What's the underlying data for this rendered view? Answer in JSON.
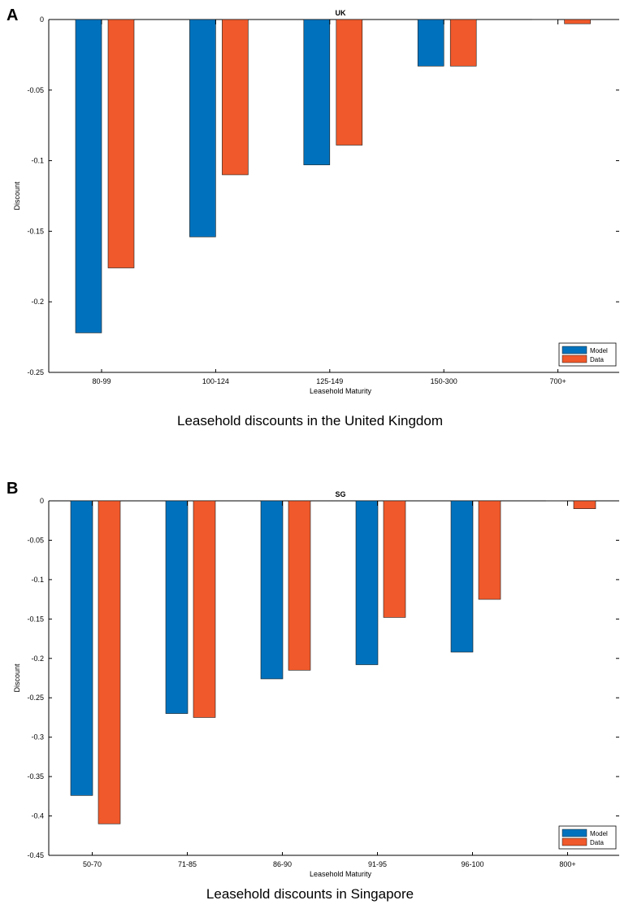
{
  "panels": [
    {
      "letter": "A",
      "caption": "Leasehold discounts in the United Kingdom"
    },
    {
      "letter": "B",
      "caption": "Leasehold discounts in Singapore"
    }
  ],
  "colors": {
    "model": "#0072bd",
    "data": "#f0592b"
  },
  "chart_data": [
    {
      "type": "bar",
      "title": "UK",
      "xlabel": "Leasehold Maturity",
      "ylabel": "Discount",
      "categories": [
        "80-99",
        "100-124",
        "125-149",
        "150-300",
        "700+"
      ],
      "series": [
        {
          "name": "Model",
          "values": [
            -0.222,
            -0.154,
            -0.103,
            -0.033,
            0.0
          ]
        },
        {
          "name": "Data",
          "values": [
            -0.176,
            -0.11,
            -0.089,
            -0.033,
            -0.003
          ]
        }
      ],
      "ylim": [
        -0.25,
        0
      ],
      "yticks": [
        0,
        -0.05,
        -0.1,
        -0.15,
        -0.2,
        -0.25
      ],
      "ytick_labels": [
        "0",
        "-0.05",
        "-0.1",
        "-0.15",
        "-0.2",
        "-0.25"
      ],
      "legend": "bottom-right",
      "grid": false
    },
    {
      "type": "bar",
      "title": "SG",
      "xlabel": "Leasehold Maturity",
      "ylabel": "Discount",
      "categories": [
        "50-70",
        "71-85",
        "86-90",
        "91-95",
        "96-100",
        "800+"
      ],
      "series": [
        {
          "name": "Model",
          "values": [
            -0.374,
            -0.27,
            -0.226,
            -0.208,
            -0.192,
            0.0
          ]
        },
        {
          "name": "Data",
          "values": [
            -0.41,
            -0.275,
            -0.215,
            -0.148,
            -0.125,
            -0.01
          ]
        }
      ],
      "ylim": [
        -0.45,
        0
      ],
      "yticks": [
        0,
        -0.05,
        -0.1,
        -0.15,
        -0.2,
        -0.25,
        -0.3,
        -0.35,
        -0.4,
        -0.45
      ],
      "ytick_labels": [
        "0",
        "-0.05",
        "-0.1",
        "-0.15",
        "-0.2",
        "-0.25",
        "-0.3",
        "-0.35",
        "-0.4",
        "-0.45"
      ],
      "legend": "bottom-right",
      "grid": false
    }
  ]
}
